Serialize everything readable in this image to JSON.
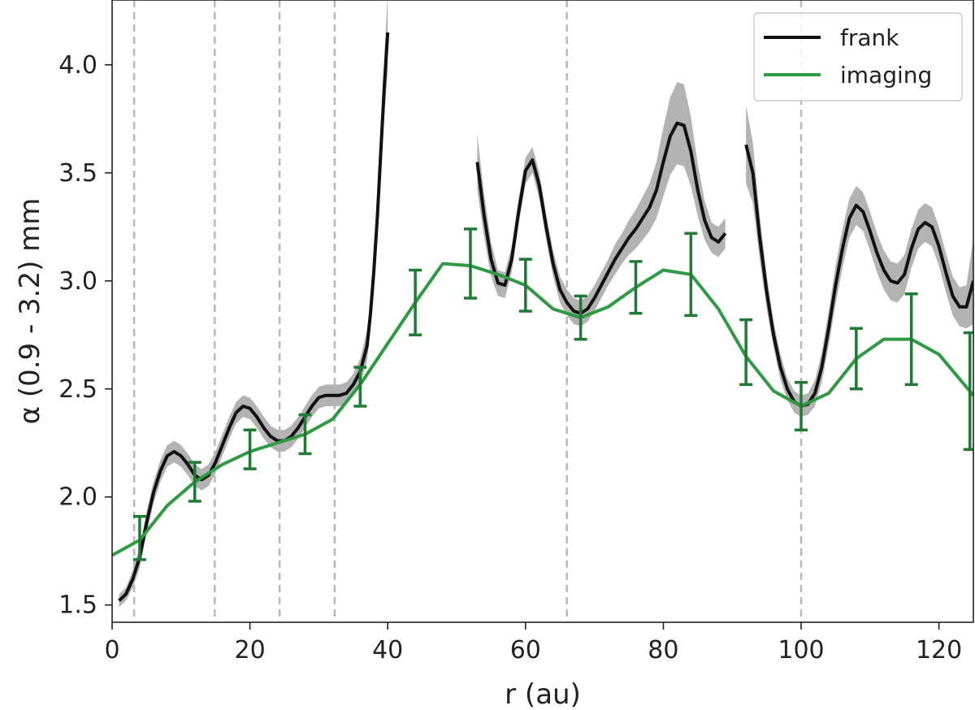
{
  "chart_data": {
    "type": "line",
    "xlabel": "r (au)",
    "ylabel": "α (0.9 - 3.2) mm",
    "xlim": [
      0,
      125
    ],
    "ylim": [
      1.42,
      4.3
    ],
    "xticks": [
      0,
      20,
      40,
      60,
      80,
      100,
      120
    ],
    "yticks": [
      1.5,
      2.0,
      2.5,
      3.0,
      3.5,
      4.0
    ],
    "xtick_labels": [
      "0",
      "20",
      "40",
      "60",
      "80",
      "100",
      "120"
    ],
    "ytick_labels": [
      "1.5",
      "2.0",
      "2.5",
      "3.0",
      "3.5",
      "4.0"
    ],
    "grid": false,
    "legend_position": "top-right",
    "vlines": [
      3.2,
      14.9,
      24.3,
      32.3,
      66.0,
      100.0
    ],
    "colors": {
      "frank": "#111111",
      "band": "#b3b3b3",
      "imaging": "#2e9a43",
      "errorbar": "#1e7a34",
      "vline": "#b8b8b8"
    },
    "series": [
      {
        "name": "frank",
        "segments": [
          {
            "x": [
              1,
              2,
              3,
              4,
              5,
              6,
              7,
              8,
              9,
              10,
              11,
              12,
              13,
              14,
              15,
              16,
              17,
              18,
              19,
              20,
              21,
              22,
              23,
              24,
              25,
              26,
              27,
              28,
              29,
              30,
              31,
              32,
              33,
              34,
              35,
              36,
              37,
              37.5,
              38,
              38.5,
              39,
              39.5,
              40
            ],
            "y": [
              1.52,
              1.55,
              1.62,
              1.72,
              1.88,
              2.02,
              2.12,
              2.19,
              2.21,
              2.19,
              2.15,
              2.1,
              2.08,
              2.1,
              2.16,
              2.24,
              2.32,
              2.39,
              2.42,
              2.41,
              2.37,
              2.32,
              2.28,
              2.26,
              2.26,
              2.28,
              2.32,
              2.37,
              2.42,
              2.46,
              2.47,
              2.47,
              2.47,
              2.48,
              2.52,
              2.58,
              2.7,
              2.85,
              3.05,
              3.3,
              3.6,
              3.9,
              4.15
            ],
            "err": [
              0.03,
              0.03,
              0.04,
              0.05,
              0.05,
              0.05,
              0.05,
              0.05,
              0.05,
              0.05,
              0.05,
              0.05,
              0.05,
              0.05,
              0.05,
              0.05,
              0.05,
              0.05,
              0.05,
              0.05,
              0.05,
              0.05,
              0.05,
              0.05,
              0.05,
              0.05,
              0.05,
              0.05,
              0.05,
              0.05,
              0.05,
              0.05,
              0.05,
              0.05,
              0.05,
              0.06,
              0.07,
              0.08,
              0.09,
              0.1,
              0.12,
              0.14,
              0.18
            ]
          },
          {
            "x": [
              53,
              54,
              55,
              56,
              57,
              58,
              59,
              60,
              61,
              62,
              63,
              64,
              65,
              66,
              67,
              68,
              69,
              70,
              71,
              72,
              73,
              74,
              75,
              76,
              77,
              78,
              79,
              80,
              81,
              82,
              83,
              84,
              85,
              86,
              87,
              88,
              89
            ],
            "y": [
              3.55,
              3.3,
              3.1,
              2.99,
              2.98,
              3.1,
              3.32,
              3.51,
              3.56,
              3.44,
              3.25,
              3.08,
              2.96,
              2.9,
              2.86,
              2.85,
              2.87,
              2.92,
              2.98,
              3.04,
              3.1,
              3.15,
              3.2,
              3.24,
              3.29,
              3.34,
              3.42,
              3.55,
              3.67,
              3.73,
              3.72,
              3.6,
              3.42,
              3.28,
              3.2,
              3.18,
              3.22
            ],
            "err": [
              0.13,
              0.1,
              0.08,
              0.06,
              0.06,
              0.06,
              0.06,
              0.06,
              0.06,
              0.06,
              0.06,
              0.06,
              0.06,
              0.06,
              0.06,
              0.06,
              0.06,
              0.06,
              0.06,
              0.06,
              0.07,
              0.07,
              0.08,
              0.09,
              0.1,
              0.11,
              0.13,
              0.16,
              0.18,
              0.19,
              0.19,
              0.16,
              0.12,
              0.09,
              0.07,
              0.07,
              0.07
            ]
          },
          {
            "x": [
              92,
              93,
              94,
              95,
              96,
              97,
              98,
              99,
              100,
              101,
              102,
              103,
              104,
              105,
              106,
              107,
              108,
              109,
              110,
              111,
              112,
              113,
              114,
              115,
              116,
              117,
              118,
              119,
              120,
              121,
              122,
              123,
              124,
              125
            ],
            "y": [
              3.63,
              3.5,
              3.2,
              2.95,
              2.75,
              2.6,
              2.5,
              2.44,
              2.42,
              2.43,
              2.48,
              2.6,
              2.78,
              2.98,
              3.15,
              3.29,
              3.35,
              3.32,
              3.23,
              3.13,
              3.05,
              3.0,
              2.99,
              3.03,
              3.15,
              3.24,
              3.27,
              3.25,
              3.16,
              3.04,
              2.93,
              2.88,
              2.88,
              3.0
            ],
            "err": [
              0.18,
              0.14,
              0.1,
              0.08,
              0.06,
              0.06,
              0.05,
              0.05,
              0.05,
              0.05,
              0.06,
              0.07,
              0.08,
              0.09,
              0.09,
              0.09,
              0.09,
              0.09,
              0.09,
              0.09,
              0.09,
              0.09,
              0.09,
              0.09,
              0.09,
              0.09,
              0.09,
              0.09,
              0.09,
              0.09,
              0.09,
              0.09,
              0.1,
              0.2
            ]
          }
        ]
      },
      {
        "name": "imaging",
        "x": [
          0,
          4,
          8,
          12,
          16,
          20,
          24,
          28,
          32,
          36,
          40,
          44,
          48,
          52,
          56,
          60,
          64,
          68,
          72,
          76,
          80,
          84,
          88,
          92,
          96,
          100,
          104,
          108,
          112,
          116,
          120,
          125
        ],
        "y": [
          1.73,
          1.8,
          1.96,
          2.07,
          2.15,
          2.21,
          2.25,
          2.29,
          2.36,
          2.52,
          2.71,
          2.9,
          3.08,
          3.07,
          3.03,
          2.98,
          2.87,
          2.83,
          2.88,
          2.97,
          3.05,
          3.03,
          2.87,
          2.65,
          2.49,
          2.42,
          2.48,
          2.64,
          2.73,
          2.73,
          2.66,
          2.47
        ],
        "errorbars": {
          "x": [
            4,
            12,
            20,
            28,
            36,
            44,
            52,
            60,
            68,
            76,
            84,
            92,
            100,
            108,
            116,
            124.5
          ],
          "y": [
            1.81,
            2.07,
            2.22,
            2.29,
            2.51,
            2.9,
            3.08,
            2.98,
            2.83,
            2.97,
            3.03,
            2.67,
            2.42,
            2.64,
            2.73,
            2.49
          ],
          "err": [
            0.1,
            0.09,
            0.09,
            0.09,
            0.09,
            0.15,
            0.16,
            0.12,
            0.1,
            0.12,
            0.19,
            0.15,
            0.11,
            0.14,
            0.21,
            0.27
          ]
        }
      }
    ]
  }
}
